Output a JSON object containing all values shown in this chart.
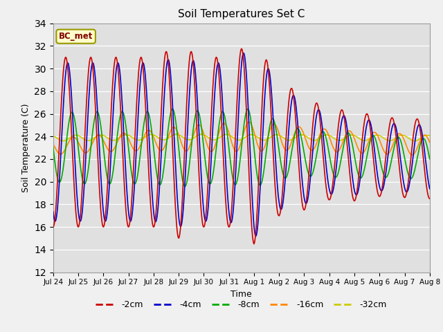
{
  "title": "Soil Temperatures Set C",
  "xlabel": "Time",
  "ylabel": "Soil Temperature (C)",
  "ylim": [
    12,
    34
  ],
  "yticks": [
    12,
    14,
    16,
    18,
    20,
    22,
    24,
    26,
    28,
    30,
    32,
    34
  ],
  "annotation": "BC_met",
  "annotation_color": "#800000",
  "annotation_bg": "#ffffcc",
  "annotation_border": "#999900",
  "series": [
    {
      "label": "-2cm",
      "color": "#cc0000",
      "lw": 1.2
    },
    {
      "label": "-4cm",
      "color": "#0000cc",
      "lw": 1.2
    },
    {
      "label": "-8cm",
      "color": "#00aa00",
      "lw": 1.2
    },
    {
      "label": "-16cm",
      "color": "#ff8800",
      "lw": 1.2
    },
    {
      "label": "-32cm",
      "color": "#cccc00",
      "lw": 1.2
    }
  ],
  "fig_facecolor": "#f0f0f0",
  "ax_facecolor": "#e0e0e0",
  "tick_labels": [
    "Jul 24",
    "Jul 25",
    "Jul 26",
    "Jul 27",
    "Jul 28",
    "Jul 29",
    "Jul 30",
    "Jul 31",
    "Aug 1",
    "Aug 2",
    "Aug 3",
    "Aug 4",
    "Aug 5",
    "Aug 6",
    "Aug 7",
    "Aug 8"
  ]
}
